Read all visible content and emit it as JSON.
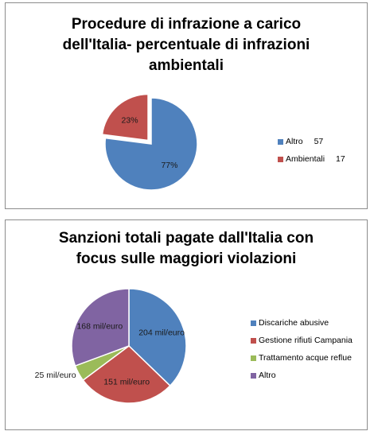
{
  "chart_data": [
    {
      "type": "pie",
      "title": "Procedure di infrazione a carico dell'Italia- percentuale di infrazioni ambientali",
      "categories": [
        "Altro",
        "Ambientali"
      ],
      "values": [
        57,
        17
      ],
      "data_labels": [
        "77%",
        "23%"
      ],
      "legend_values": [
        "57",
        "17"
      ],
      "colors": [
        "#4f81bd",
        "#c0504d"
      ],
      "exploded": [
        false,
        true
      ],
      "legend_position": "right"
    },
    {
      "type": "pie",
      "title": "Sanzioni totali pagate dall'Italia con focus sulle maggiori violazioni",
      "categories": [
        "Discariche abusive",
        "Gestione rifiuti Campania",
        "Trattamento acque reflue",
        "Altro"
      ],
      "values": [
        204,
        151,
        25,
        168
      ],
      "data_labels": [
        "204 mil/euro",
        "151 mil/euro",
        "25 mil/euro",
        "168 mil/euro"
      ],
      "colors": [
        "#4f81bd",
        "#c0504d",
        "#9bbb59",
        "#8064a2"
      ],
      "legend_position": "right"
    }
  ]
}
